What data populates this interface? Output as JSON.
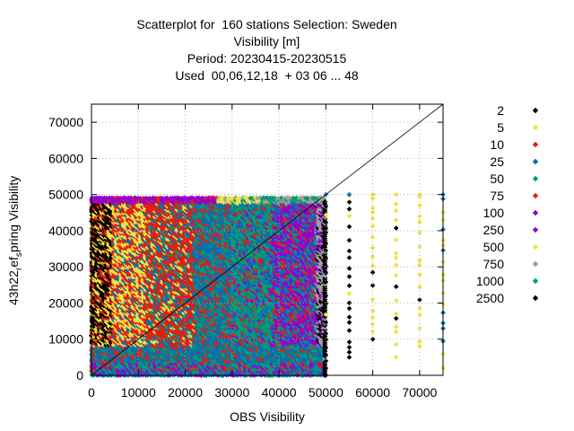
{
  "title": {
    "line1": "Scatterplot for  160 stations Selection: Sweden",
    "line2": "Visibility [m]",
    "line3": "Period: 20230415-20230515",
    "line4": "Used  00,06,12,18  + 03 06 ... 48"
  },
  "chart_data": {
    "type": "scatter",
    "title": "Scatterplot for  160 stations Selection: Sweden",
    "xlabel": "OBS Visibility",
    "ylabel_parts": [
      "43h22",
      "r",
      "ef",
      "s",
      "pring Visibility"
    ],
    "xlim": [
      0,
      75000
    ],
    "ylim": [
      0,
      75000
    ],
    "xticks": [
      "0",
      "10000",
      "20000",
      "30000",
      "40000",
      "50000",
      "60000",
      "70000"
    ],
    "yticks": [
      "0",
      "10000",
      "20000",
      "30000",
      "40000",
      "50000",
      "60000",
      "70000"
    ],
    "grid": true,
    "legend_placement": "right",
    "diagonal_line": true,
    "legend": [
      {
        "label": "2",
        "color": "#000000"
      },
      {
        "label": "5",
        "color": "#f0e442"
      },
      {
        "label": "10",
        "color": "#e51e10"
      },
      {
        "label": "25",
        "color": "#0072b2"
      },
      {
        "label": "50",
        "color": "#009e73"
      },
      {
        "label": "75",
        "color": "#e51e10"
      },
      {
        "label": "100",
        "color": "#9400d3"
      },
      {
        "label": "250",
        "color": "#9400d3"
      },
      {
        "label": "500",
        "color": "#f0e442"
      },
      {
        "label": "750",
        "color": "#a0a0a0"
      },
      {
        "label": "1000",
        "color": "#009e73"
      },
      {
        "label": "2500",
        "color": "#000000"
      }
    ],
    "columns": [
      {
        "x": 50000,
        "y_range": [
          0,
          48000
        ],
        "color": "#000000"
      },
      {
        "x": 55000,
        "y_range": [
          5000,
          50000
        ],
        "color": "#000000"
      },
      {
        "x": 60000,
        "y_range": [
          10000,
          50000
        ],
        "color": "#f0e442"
      },
      {
        "x": 65000,
        "y_range": [
          5000,
          50000
        ],
        "color": "#f0e442"
      },
      {
        "x": 70000,
        "y_range": [
          8000,
          50000
        ],
        "color": "#f0e442"
      },
      {
        "x": 75000,
        "y_range": [
          2000,
          50000
        ],
        "color": "#0072b2"
      }
    ]
  }
}
